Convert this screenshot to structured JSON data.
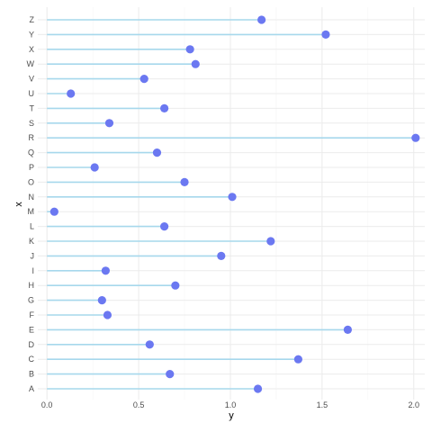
{
  "chart_data": {
    "type": "lollipop",
    "orientation": "horizontal",
    "xlabel": "y",
    "ylabel": "x",
    "categories": [
      "A",
      "B",
      "C",
      "D",
      "E",
      "F",
      "G",
      "H",
      "I",
      "J",
      "K",
      "L",
      "M",
      "N",
      "O",
      "P",
      "Q",
      "R",
      "S",
      "T",
      "U",
      "V",
      "W",
      "X",
      "Y",
      "Z"
    ],
    "values": [
      1.15,
      0.67,
      1.37,
      0.56,
      1.64,
      0.33,
      0.3,
      0.7,
      0.32,
      0.95,
      1.22,
      0.64,
      0.04,
      1.01,
      0.75,
      0.26,
      0.6,
      2.01,
      0.34,
      0.64,
      0.13,
      0.53,
      0.81,
      0.78,
      1.52,
      1.17
    ],
    "xlim": [
      -0.05,
      2.06
    ],
    "xticks": [
      0.0,
      0.5,
      1.0,
      1.5,
      2.0
    ],
    "xtick_labels": [
      "0.0",
      "0.5",
      "1.0",
      "1.5",
      "2.0"
    ],
    "grid": true,
    "colors": {
      "segment": "#a6d8ec",
      "point": "#6b78f1",
      "grid_major": "#ebebeb",
      "grid_minor": "#f5f5f5",
      "background": "#ffffff"
    }
  }
}
